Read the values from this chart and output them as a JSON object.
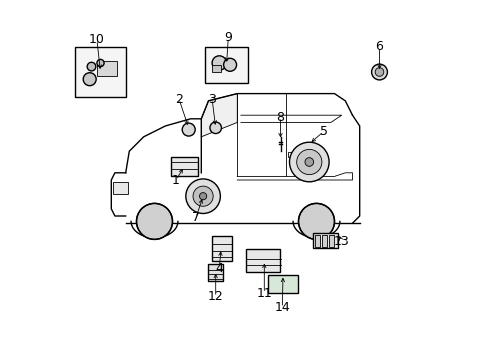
{
  "title": "",
  "bg_color": "#ffffff",
  "line_color": "#000000",
  "figsize": [
    4.89,
    3.6
  ],
  "dpi": 100,
  "font_size_label": 9
}
